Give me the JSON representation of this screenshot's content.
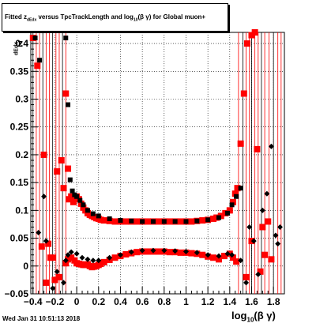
{
  "title": "Fitted z versus TpcTrackLength and log(βγ) for Global muon+",
  "title_parts": {
    "pre": "Fitted  z",
    "sub1": "dEdx",
    "mid": " versus TpcTrackLength and log",
    "sub2": "10",
    "post": "(β γ) for Global muon+"
  },
  "x_label": {
    "pre": "log",
    "sub": "10",
    "post": "(β γ)"
  },
  "y_label": {
    "main": "z",
    "sub": "dEdx"
  },
  "timestamp": "Wed Jan 31 10:51:13 2018",
  "colors": {
    "red": "#ff0000",
    "black": "#000000",
    "background": "#ffffff"
  },
  "chart_data": {
    "type": "scatter",
    "xlim": [
      -0.42,
      1.9
    ],
    "ylim": [
      -0.05,
      0.42
    ],
    "x_ticks": [
      "−0.4",
      "−0.2",
      "0",
      "0.2",
      "0.4",
      "0.6",
      "0.8",
      "1",
      "1.2",
      "1.4",
      "1.6",
      "1.8"
    ],
    "x_tick_values": [
      -0.4,
      -0.2,
      0,
      0.2,
      0.4,
      0.6,
      0.8,
      1,
      1.2,
      1.4,
      1.6,
      1.8
    ],
    "y_ticks": [
      "−0.05",
      "0",
      "0.05",
      "0.1",
      "0.15",
      "0.2",
      "0.25",
      "0.3",
      "0.35",
      "0.4"
    ],
    "y_tick_values": [
      -0.05,
      0,
      0.05,
      0.1,
      0.15,
      0.2,
      0.25,
      0.3,
      0.35,
      0.4
    ],
    "grid": true,
    "series": [
      {
        "marker": "square",
        "color": "#ff0000",
        "points": [
          [
            -0.4,
            0.41
          ],
          [
            -0.36,
            0.36
          ],
          [
            -0.3,
            0.2
          ],
          [
            -0.26,
            0.04
          ],
          [
            -0.22,
            0.015
          ],
          [
            -0.18,
            0.17
          ],
          [
            -0.14,
            0.19
          ],
          [
            -0.12,
            0.14
          ],
          [
            -0.1,
            0.31
          ],
          [
            -0.08,
            0.175
          ],
          [
            -0.07,
            0.12
          ],
          [
            -0.05,
            0.125
          ],
          [
            -0.03,
            0.115
          ],
          [
            0.0,
            0.125
          ],
          [
            0.02,
            0.12
          ],
          [
            0.04,
            0.112
          ],
          [
            0.06,
            0.105
          ],
          [
            0.08,
            0.1
          ],
          [
            0.1,
            0.095
          ],
          [
            0.12,
            0.092
          ],
          [
            0.14,
            0.09
          ],
          [
            0.16,
            0.088
          ],
          [
            0.18,
            0.086
          ],
          [
            0.2,
            0.085
          ],
          [
            0.22,
            0.083
          ],
          [
            0.25,
            0.082
          ],
          [
            0.3,
            0.081
          ],
          [
            0.35,
            0.08
          ],
          [
            0.4,
            0.08
          ],
          [
            0.45,
            0.08
          ],
          [
            0.5,
            0.08
          ],
          [
            0.55,
            0.08
          ],
          [
            0.6,
            0.08
          ],
          [
            0.65,
            0.08
          ],
          [
            0.7,
            0.08
          ],
          [
            0.75,
            0.08
          ],
          [
            0.8,
            0.08
          ],
          [
            0.85,
            0.08
          ],
          [
            0.9,
            0.08
          ],
          [
            0.95,
            0.08
          ],
          [
            1.0,
            0.08
          ],
          [
            1.05,
            0.08
          ],
          [
            1.1,
            0.081
          ],
          [
            1.15,
            0.082
          ],
          [
            1.2,
            0.083
          ],
          [
            1.25,
            0.085
          ],
          [
            1.28,
            0.087
          ],
          [
            1.32,
            0.09
          ],
          [
            1.36,
            0.095
          ],
          [
            1.4,
            0.1
          ],
          [
            1.43,
            0.115
          ],
          [
            1.45,
            0.13
          ],
          [
            1.47,
            0.14
          ],
          [
            1.5,
            0.22
          ],
          [
            1.53,
            0.31
          ],
          [
            1.56,
            0.4
          ],
          [
            1.6,
            0.415
          ],
          [
            1.63,
            0.42
          ],
          [
            1.65,
            0.21
          ],
          [
            1.7,
            0.07
          ],
          [
            1.72,
            0.02
          ],
          [
            1.75,
            0.08
          ],
          [
            1.78,
            0.012
          ],
          [
            -0.32,
            0.035
          ],
          [
            -0.28,
            -0.03
          ],
          [
            -0.24,
            0.015
          ],
          [
            -0.2,
            -0.025
          ],
          [
            -0.16,
            -0.02
          ],
          [
            1.55,
            -0.02
          ],
          [
            1.6,
            0.045
          ],
          [
            1.68,
            -0.01
          ]
        ]
      },
      {
        "marker": "square",
        "color": "#ff0000",
        "points": [
          [
            -0.1,
            0.005
          ],
          [
            -0.08,
            0.012
          ],
          [
            -0.05,
            0.015
          ],
          [
            -0.02,
            0.01
          ],
          [
            0.0,
            0.005
          ],
          [
            0.02,
            0.004
          ],
          [
            0.04,
            0.003
          ],
          [
            0.06,
            0.002
          ],
          [
            0.08,
            0.002
          ],
          [
            0.1,
            0.003
          ],
          [
            0.12,
            0.0
          ],
          [
            0.14,
            -0.002
          ],
          [
            0.16,
            -0.001
          ],
          [
            0.18,
            0.0
          ],
          [
            0.2,
            0.002
          ],
          [
            0.22,
            0.004
          ],
          [
            0.25,
            0.007
          ],
          [
            0.3,
            0.011
          ],
          [
            0.35,
            0.015
          ],
          [
            0.4,
            0.018
          ],
          [
            0.45,
            0.021
          ],
          [
            0.5,
            0.023
          ],
          [
            0.55,
            0.025
          ],
          [
            0.6,
            0.026
          ],
          [
            0.65,
            0.026
          ],
          [
            0.7,
            0.026
          ],
          [
            0.75,
            0.026
          ],
          [
            0.8,
            0.026
          ],
          [
            0.85,
            0.025
          ],
          [
            0.9,
            0.025
          ],
          [
            0.95,
            0.024
          ],
          [
            1.0,
            0.024
          ],
          [
            1.05,
            0.023
          ],
          [
            1.1,
            0.022
          ],
          [
            1.15,
            0.02
          ],
          [
            1.2,
            0.017
          ],
          [
            1.25,
            0.015
          ],
          [
            1.3,
            0.012
          ],
          [
            1.35,
            0.018
          ],
          [
            1.4,
            0.022
          ],
          [
            1.43,
            0.015
          ],
          [
            1.46,
            0.008
          ]
        ]
      },
      {
        "marker": "square",
        "color": "#000000",
        "points": [
          [
            -0.38,
            0.41
          ],
          [
            -0.34,
            0.37
          ],
          [
            -0.1,
            0.41
          ],
          [
            -0.08,
            0.29
          ],
          [
            -0.06,
            0.155
          ],
          [
            -0.04,
            0.135
          ],
          [
            -0.02,
            0.128
          ],
          [
            0.0,
            0.125
          ],
          [
            0.03,
            0.118
          ],
          [
            0.06,
            0.11
          ],
          [
            0.1,
            0.1
          ],
          [
            0.15,
            0.094
          ],
          [
            0.2,
            0.09
          ],
          [
            0.3,
            0.085
          ],
          [
            0.4,
            0.082
          ],
          [
            0.5,
            0.081
          ],
          [
            0.6,
            0.08
          ],
          [
            0.7,
            0.08
          ],
          [
            0.8,
            0.08
          ],
          [
            0.9,
            0.08
          ],
          [
            1.0,
            0.08
          ],
          [
            1.1,
            0.081
          ],
          [
            1.2,
            0.083
          ],
          [
            1.3,
            0.087
          ],
          [
            1.38,
            0.095
          ],
          [
            1.42,
            0.11
          ],
          [
            1.46,
            0.125
          ],
          [
            1.5,
            0.14
          ]
        ]
      },
      {
        "marker": "diamond",
        "color": "#000000",
        "points": [
          [
            -0.35,
            0.06
          ],
          [
            -0.3,
            0.125
          ],
          [
            -0.28,
            0.045
          ],
          [
            -0.22,
            -0.04
          ],
          [
            -0.18,
            -0.01
          ],
          [
            -0.12,
            -0.03
          ],
          [
            -0.1,
            0.01
          ],
          [
            -0.08,
            0.02
          ],
          [
            -0.05,
            0.025
          ],
          [
            0.0,
            0.022
          ],
          [
            0.05,
            0.015
          ],
          [
            0.1,
            0.012
          ],
          [
            0.15,
            0.01
          ],
          [
            0.2,
            0.01
          ],
          [
            0.3,
            0.015
          ],
          [
            0.4,
            0.02
          ],
          [
            0.5,
            0.025
          ],
          [
            0.6,
            0.028
          ],
          [
            0.7,
            0.028
          ],
          [
            0.8,
            0.028
          ],
          [
            0.9,
            0.027
          ],
          [
            1.0,
            0.026
          ],
          [
            1.1,
            0.024
          ],
          [
            1.2,
            0.02
          ],
          [
            1.3,
            0.018
          ],
          [
            1.38,
            0.022
          ],
          [
            1.42,
            0.02
          ],
          [
            1.5,
            0.01
          ],
          [
            1.55,
            -0.03
          ],
          [
            1.58,
            0.07
          ],
          [
            1.62,
            0.045
          ],
          [
            1.66,
            -0.015
          ],
          [
            1.7,
            0.1
          ],
          [
            1.74,
            0.13
          ],
          [
            1.78,
            0.215
          ],
          [
            1.82,
            0.055
          ],
          [
            1.86,
            0.07
          ],
          [
            1.84,
            0.04
          ]
        ]
      }
    ],
    "error_bar_x": [
      -0.4,
      -0.37,
      -0.34,
      -0.31,
      -0.28,
      -0.25,
      -0.22,
      -0.19,
      -0.16,
      -0.13,
      -0.1,
      1.48,
      1.52,
      1.55,
      1.58,
      1.6,
      1.63,
      1.66,
      1.69,
      1.72,
      1.76,
      1.8,
      1.84,
      1.87
    ]
  }
}
